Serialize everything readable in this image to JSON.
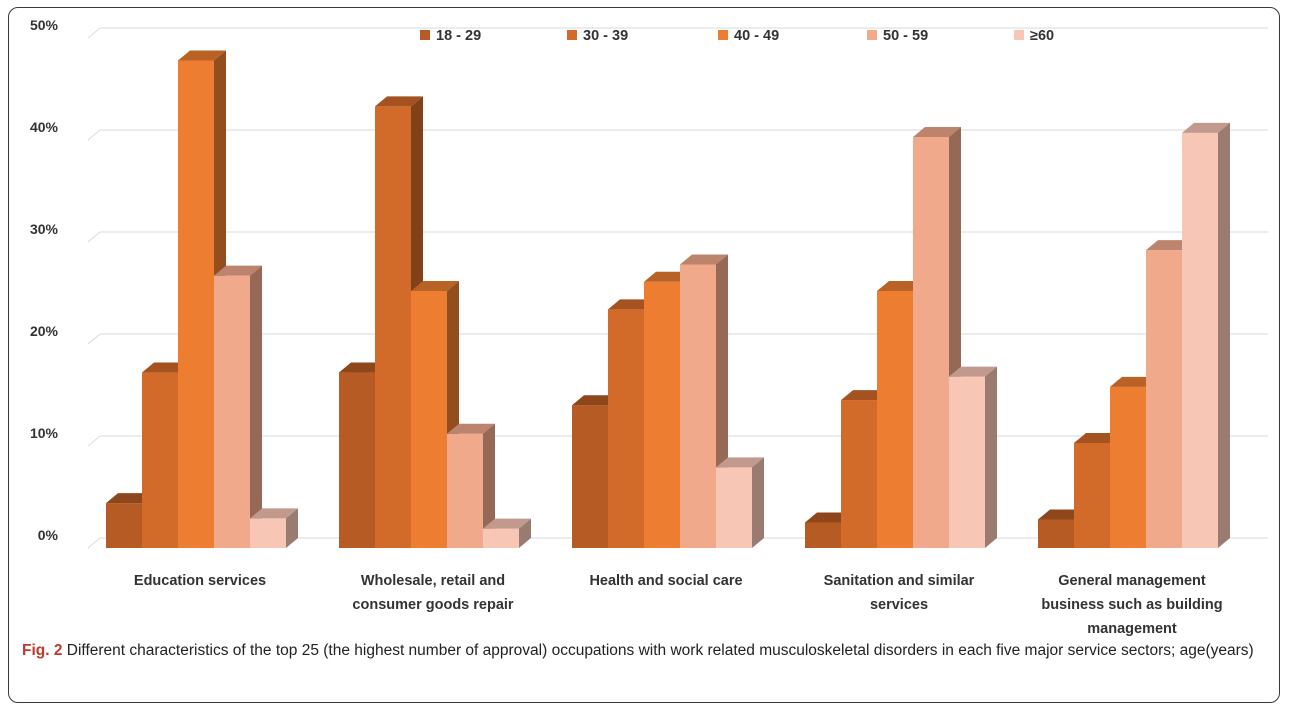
{
  "chart_data": {
    "type": "bar",
    "categories": [
      "Education services",
      "Wholesale, retail and consumer goods repair",
      "Health and social care",
      "Sanitation and similar services",
      "General management business such as building management"
    ],
    "category_label_lines": [
      [
        "Education services"
      ],
      [
        "Wholesale, retail and",
        "consumer goods repair"
      ],
      [
        "Health and social care"
      ],
      [
        "Sanitation and similar",
        "services"
      ],
      [
        "General management",
        "business such as building",
        "management"
      ]
    ],
    "series": [
      {
        "name": "18 - 29",
        "color": "#b65b23",
        "values": [
          4.4,
          17.2,
          14.0,
          2.5,
          2.8
        ]
      },
      {
        "name": "30 - 39",
        "color": "#d26b29",
        "values": [
          17.2,
          43.3,
          23.4,
          14.5,
          10.3
        ]
      },
      {
        "name": "40 - 49",
        "color": "#ec7d31",
        "values": [
          47.8,
          25.2,
          26.1,
          25.2,
          15.8
        ]
      },
      {
        "name": "50 - 59",
        "color": "#f1a98b",
        "values": [
          26.7,
          11.2,
          27.8,
          40.3,
          29.2
        ]
      },
      {
        "name": "≥60",
        "color": "#f7c6b5",
        "values": [
          2.9,
          1.9,
          7.9,
          16.8,
          40.7
        ]
      }
    ],
    "yticks": [
      "0%",
      "10%",
      "20%",
      "30%",
      "40%",
      "50%"
    ],
    "ylim": [
      0,
      50
    ],
    "legend_position": "top",
    "grid": true
  },
  "caption": {
    "label": "Fig. 2",
    "text": "Different characteristics of the top 25 (the highest number of approval) occupations with work related musculoskeletal disorders in each five major service sectors; age(years)"
  }
}
